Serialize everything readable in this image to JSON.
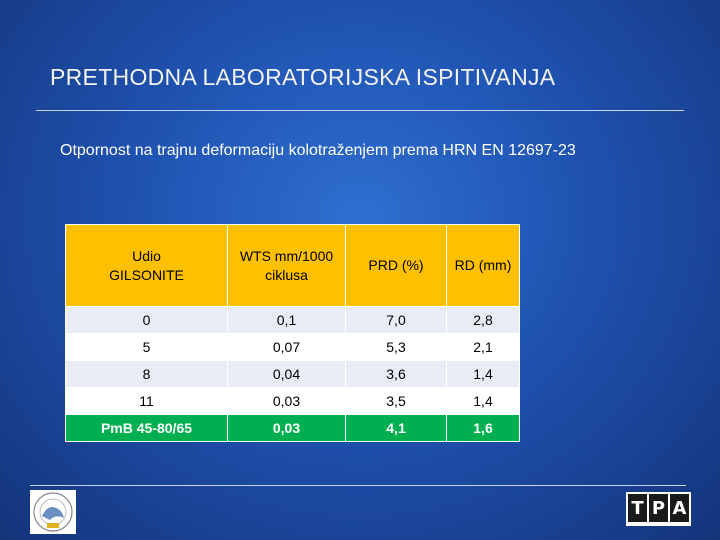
{
  "slide": {
    "title": "PRETHODNA LABORATORIJSKA ISPITIVANJA",
    "subtitle": "Otpornost na trajnu deformaciju kolotraženjem prema HRN EN 12697-23"
  },
  "table": {
    "headers": [
      [
        "Udio",
        "GILSONITE"
      ],
      [
        "WTS mm/1000",
        "ciklusa"
      ],
      [
        "PRD (%)"
      ],
      [
        "RD (mm)"
      ]
    ],
    "rows": [
      [
        "0",
        "0,1",
        "7,0",
        "2,8"
      ],
      [
        "5",
        "0,07",
        "5,3",
        "2,1"
      ],
      [
        "8",
        "0,04",
        "3,6",
        "1,4"
      ],
      [
        "11",
        "0,03",
        "3,5",
        "1,4"
      ],
      [
        "PmB 45-80/65",
        "0,03",
        "4,1",
        "1,6"
      ]
    ],
    "highlight_row": 4,
    "colors": {
      "header": "#ffc000",
      "highlight": "#00b050",
      "row_odd": "#e7ecf5",
      "row_even": "#ffffff"
    }
  },
  "footer": {
    "left_logo_icon": "institute-seal-icon",
    "right_logo_letters": [
      "T",
      "P",
      "A"
    ]
  }
}
